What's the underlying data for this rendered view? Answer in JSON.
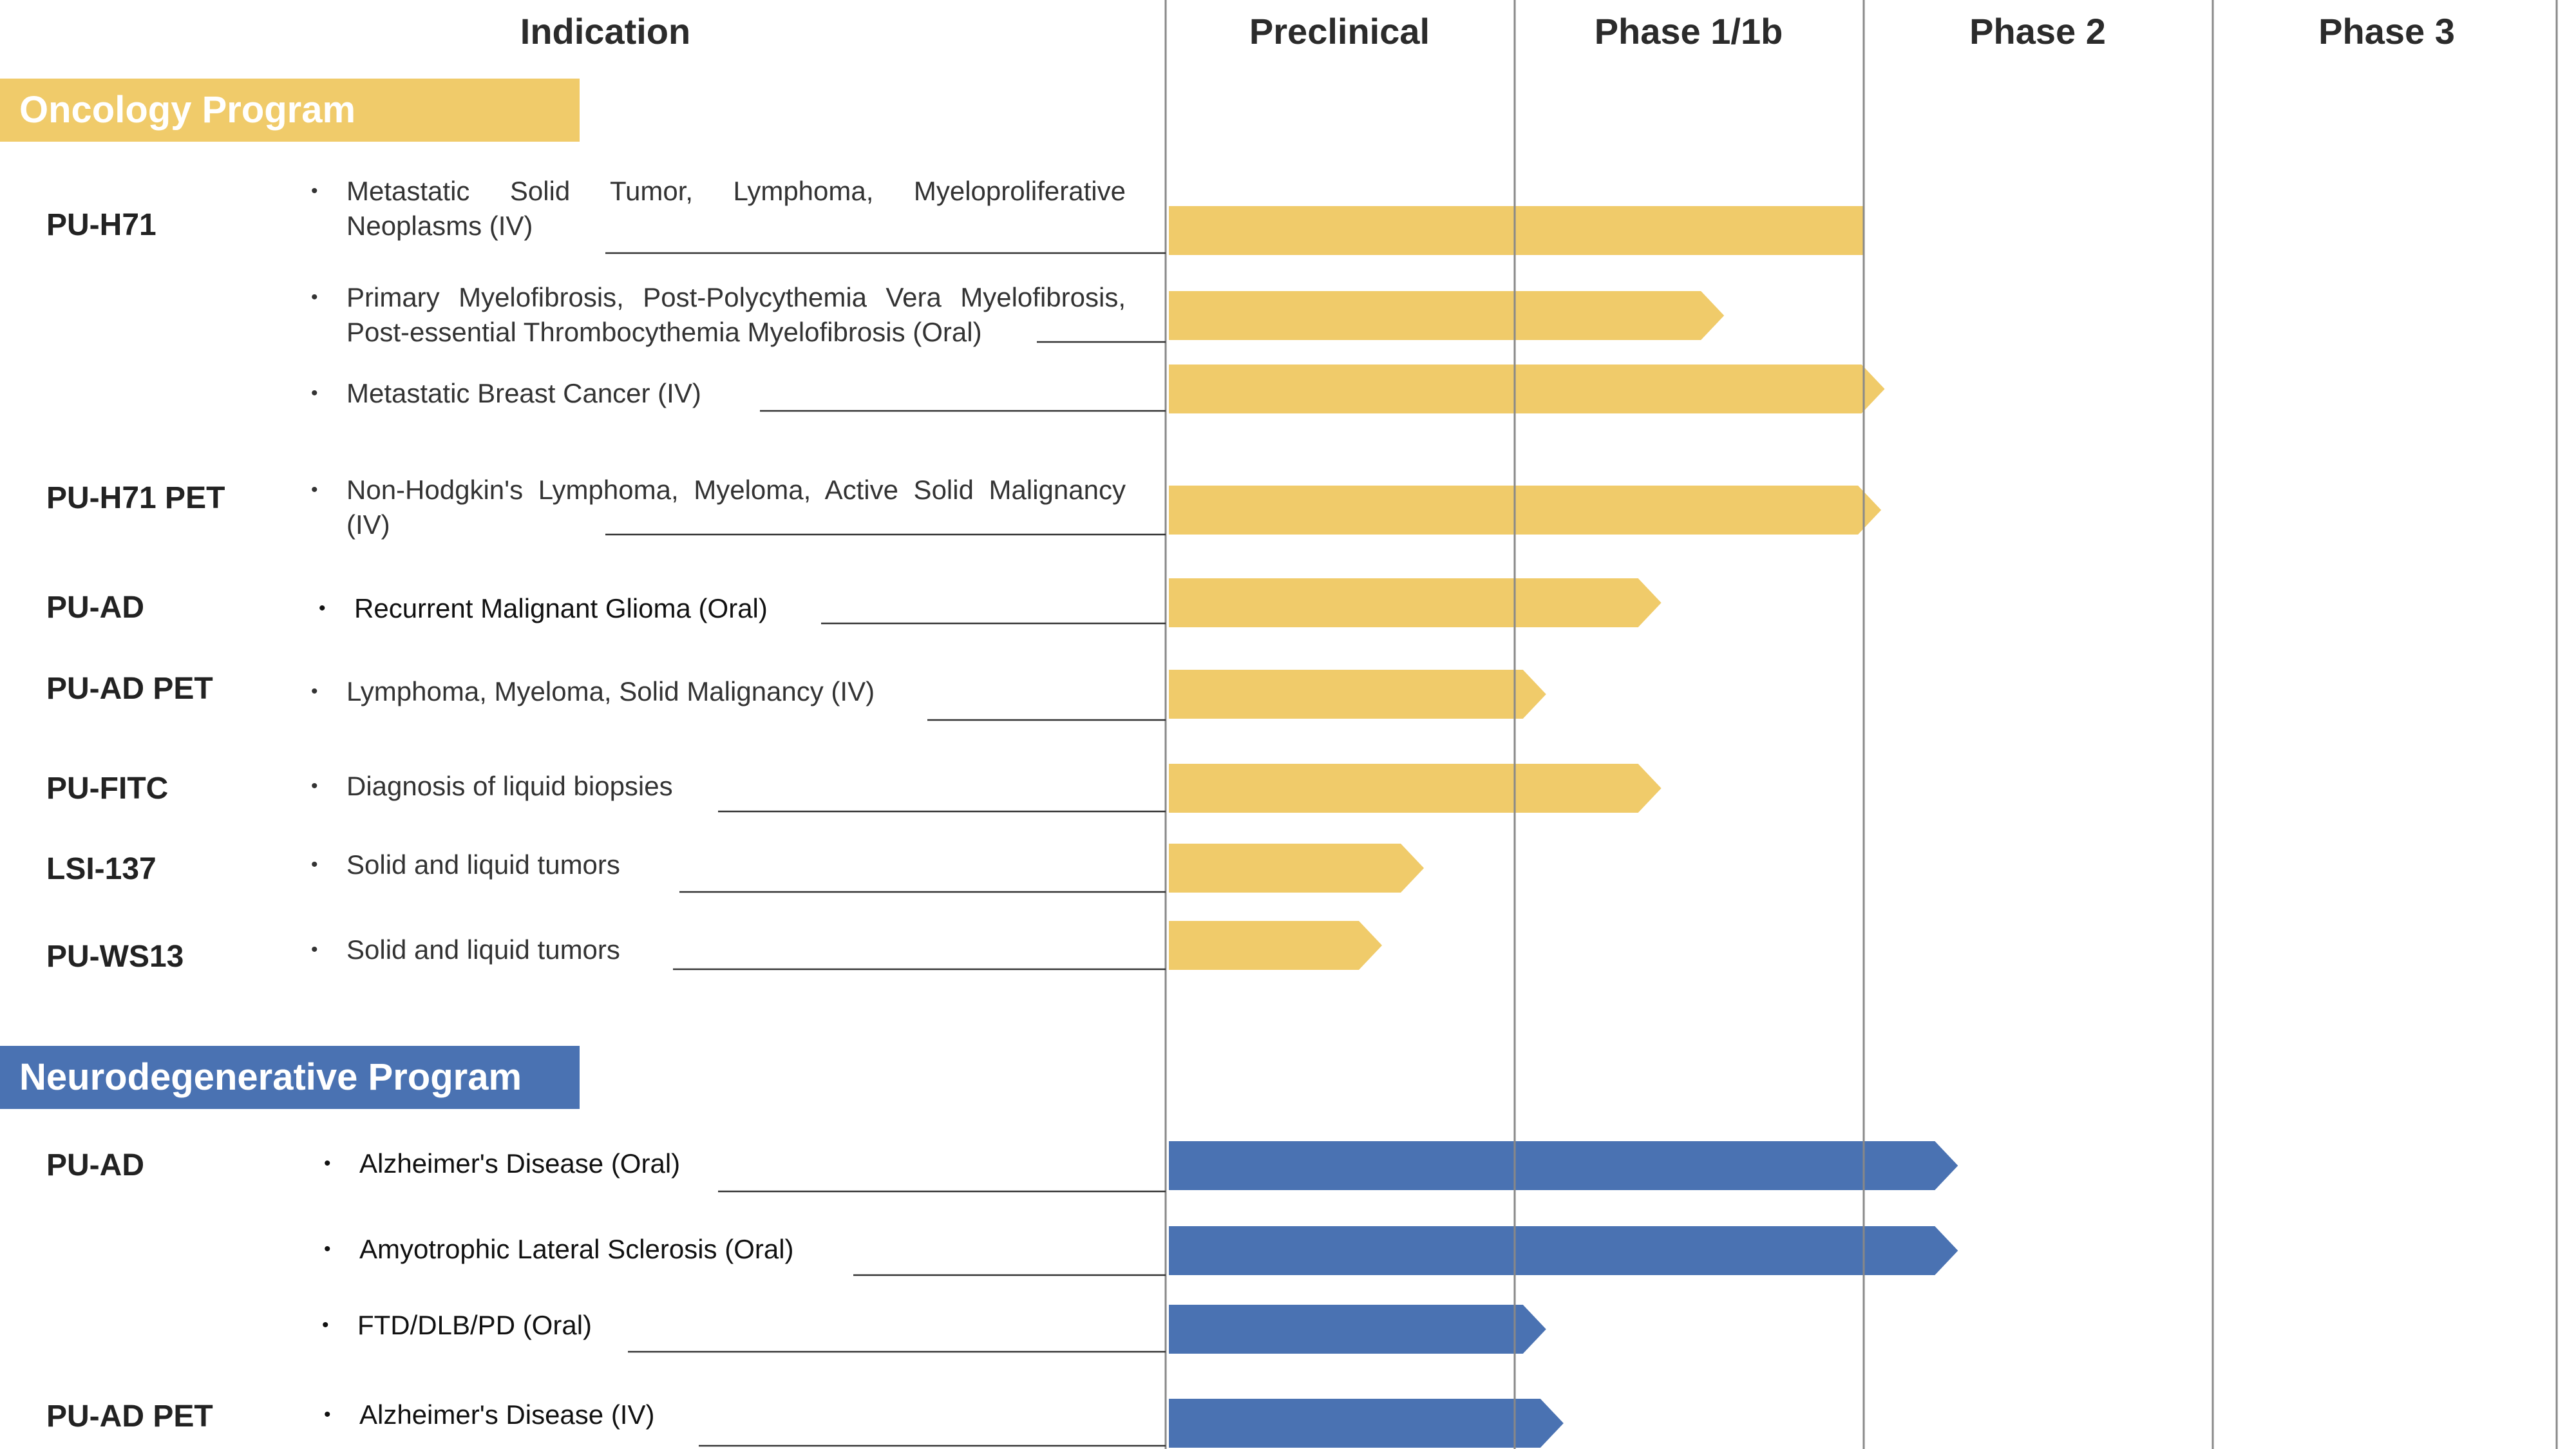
{
  "header": {
    "indication": "Indication",
    "phases": [
      "Preclinical",
      "Phase 1/1b",
      "Phase 2",
      "Phase 3"
    ]
  },
  "programs": {
    "oncology": "Oncology Program",
    "neuro": "Neurodegenerative Program"
  },
  "colors": {
    "oncology": "#F0CB6A",
    "neuro": "#4A72B2",
    "gridline": "#888888",
    "leader": "#333333"
  },
  "drugs": {
    "pu_h71": "PU-H71",
    "pu_h71_pet": "PU-H71 PET",
    "pu_ad": "PU-AD",
    "pu_ad_pet": "PU-AD PET",
    "pu_fitc": "PU-FITC",
    "lsi_137": "LSI-137",
    "pu_ws13": "PU-WS13",
    "neuro_pu_ad": "PU-AD",
    "neuro_pu_ad_pet": "PU-AD PET"
  },
  "indications": [
    {
      "program": "oncology",
      "text": "Metastatic Solid Tumor, Lymphoma, Myeloproliferative Neoplasms (IV)",
      "progress": 2.0
    },
    {
      "program": "oncology",
      "text": "Primary Myelofibrosis, Post-Polycythemia Vera Myelofibrosis, Post-essential Thrombocythemia Myelofibrosis (Oral)",
      "progress": 1.6
    },
    {
      "program": "oncology",
      "text": "Metastatic Breast Cancer (IV)",
      "progress": 2.06
    },
    {
      "program": "oncology",
      "text": "Non-Hodgkin's Lymphoma, Myeloma, Active Solid Malignancy (IV)",
      "progress": 2.05
    },
    {
      "program": "oncology",
      "text": "Recurrent Malignant Glioma (Oral)",
      "progress": 1.42
    },
    {
      "program": "oncology",
      "text": "Lymphoma, Myeloma, Solid Malignancy (IV)",
      "progress": 1.09
    },
    {
      "program": "oncology",
      "text": "Diagnosis of liquid biopsies",
      "progress": 1.42
    },
    {
      "program": "oncology",
      "text": "Solid and liquid tumors",
      "progress": 0.74
    },
    {
      "program": "oncology",
      "text": "Solid and liquid tumors",
      "progress": 0.62
    },
    {
      "program": "neuro",
      "text": "Alzheimer's Disease (Oral)",
      "progress": 2.27
    },
    {
      "program": "neuro",
      "text": "Amyotrophic Lateral Sclerosis (Oral)",
      "progress": 2.27
    },
    {
      "program": "neuro",
      "text": "FTD/DLB/PD (Oral)",
      "progress": 1.09
    },
    {
      "program": "neuro",
      "text": "Alzheimer's Disease (IV)",
      "progress": 1.14
    }
  ]
}
